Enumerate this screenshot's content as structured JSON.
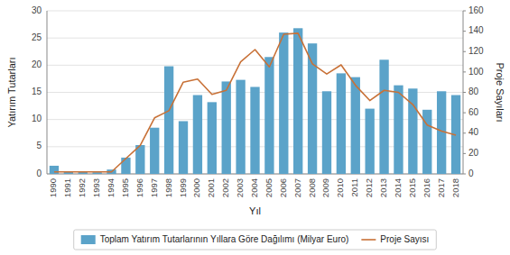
{
  "chart_data": {
    "type": "bar",
    "xlabel": "Yıl",
    "ylabel": "Yatırım Tutarları",
    "y2label": "Proje Sayıları",
    "categories": [
      "1990",
      "1991",
      "1992",
      "1993",
      "1994",
      "1995",
      "1996",
      "1997",
      "1998",
      "1999",
      "2000",
      "2001",
      "2002",
      "2003",
      "2004",
      "2005",
      "2006",
      "2007",
      "2008",
      "2009",
      "2010",
      "2011",
      "2012",
      "2013",
      "2014",
      "2015",
      "2016",
      "2017",
      "2018"
    ],
    "series": [
      {
        "name": "Toplam Yatırım Tutarlarının Yıllara Göre Dağılımı (Milyar Euro)",
        "type": "bar",
        "color": "#5BA3C9",
        "values": [
          1.5,
          0.5,
          0.5,
          0.3,
          0.8,
          3.0,
          5.3,
          8.5,
          19.8,
          9.7,
          14.5,
          13.2,
          17.0,
          17.3,
          16.0,
          21.5,
          26.0,
          26.8,
          24.0,
          15.2,
          18.5,
          17.8,
          12.0,
          21.0,
          16.3,
          15.7,
          11.8,
          15.2,
          14.5
        ]
      },
      {
        "name": "Proje Sayısı",
        "type": "line",
        "color": "#C87137",
        "axis": "y2",
        "values": [
          2,
          2,
          2,
          2,
          2,
          15,
          28,
          55,
          62,
          90,
          93,
          78,
          82,
          110,
          122,
          105,
          137,
          138,
          108,
          98,
          107,
          87,
          72,
          82,
          80,
          68,
          48,
          42,
          38
        ]
      }
    ],
    "ylim": [
      0,
      30
    ],
    "yticks": [
      0,
      5,
      10,
      15,
      20,
      25,
      30
    ],
    "y2lim": [
      0,
      160
    ],
    "y2ticks": [
      0,
      20,
      40,
      60,
      80,
      100,
      120,
      140,
      160
    ],
    "grid": true,
    "legend": "bottom"
  }
}
